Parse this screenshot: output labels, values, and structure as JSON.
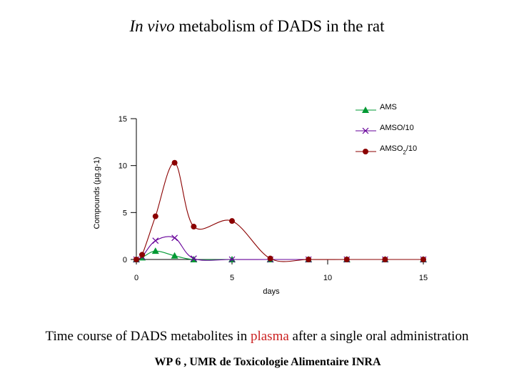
{
  "title": {
    "italic": "In vivo",
    "rest": " metabolism of DADS in the rat"
  },
  "caption": {
    "before": "Time course of DADS metabolites in ",
    "highlight": "plasma",
    "after": " after a single oral administration"
  },
  "footer": "WP 6 , UMR de Toxicologie Alimentaire INRA",
  "colors": {
    "AMS": "#009933",
    "AMSO": "#660099",
    "AMSO2": "#8b0000",
    "axis": "#000000",
    "caption_highlight": "#cc2222"
  },
  "chart_data": {
    "type": "line",
    "title": "In vivo metabolism of DADS in the rat",
    "xlabel": "days",
    "ylabel": "Compounds (µg.g-1)",
    "xlim": [
      0,
      15
    ],
    "ylim": [
      0,
      15
    ],
    "xticks": [
      "0",
      "5",
      "10",
      "15"
    ],
    "yticks": [
      "0",
      "5",
      "10",
      "15"
    ],
    "legend_position": "top-right",
    "series": [
      {
        "name": "AMS",
        "marker": "triangle",
        "x": [
          0,
          0.3,
          1,
          2,
          3,
          5,
          7,
          9,
          11,
          13,
          15
        ],
        "y": [
          0,
          0.2,
          0.9,
          0.4,
          0,
          0,
          0,
          0,
          0,
          0,
          0
        ]
      },
      {
        "name": "AMSO/10",
        "marker": "x",
        "x": [
          0,
          0.3,
          1,
          2,
          3,
          5,
          7,
          9,
          11,
          13,
          15
        ],
        "y": [
          0,
          0.3,
          2,
          2.3,
          0.1,
          0,
          0,
          0,
          0,
          0,
          0
        ]
      },
      {
        "name": "AMSO2/10",
        "marker": "circle",
        "x": [
          0,
          0.3,
          1,
          2,
          3,
          5,
          7,
          9,
          11,
          13,
          15
        ],
        "y": [
          0,
          0.5,
          4.6,
          10.3,
          3.5,
          4.1,
          0.1,
          0,
          0,
          0,
          0
        ]
      }
    ]
  }
}
